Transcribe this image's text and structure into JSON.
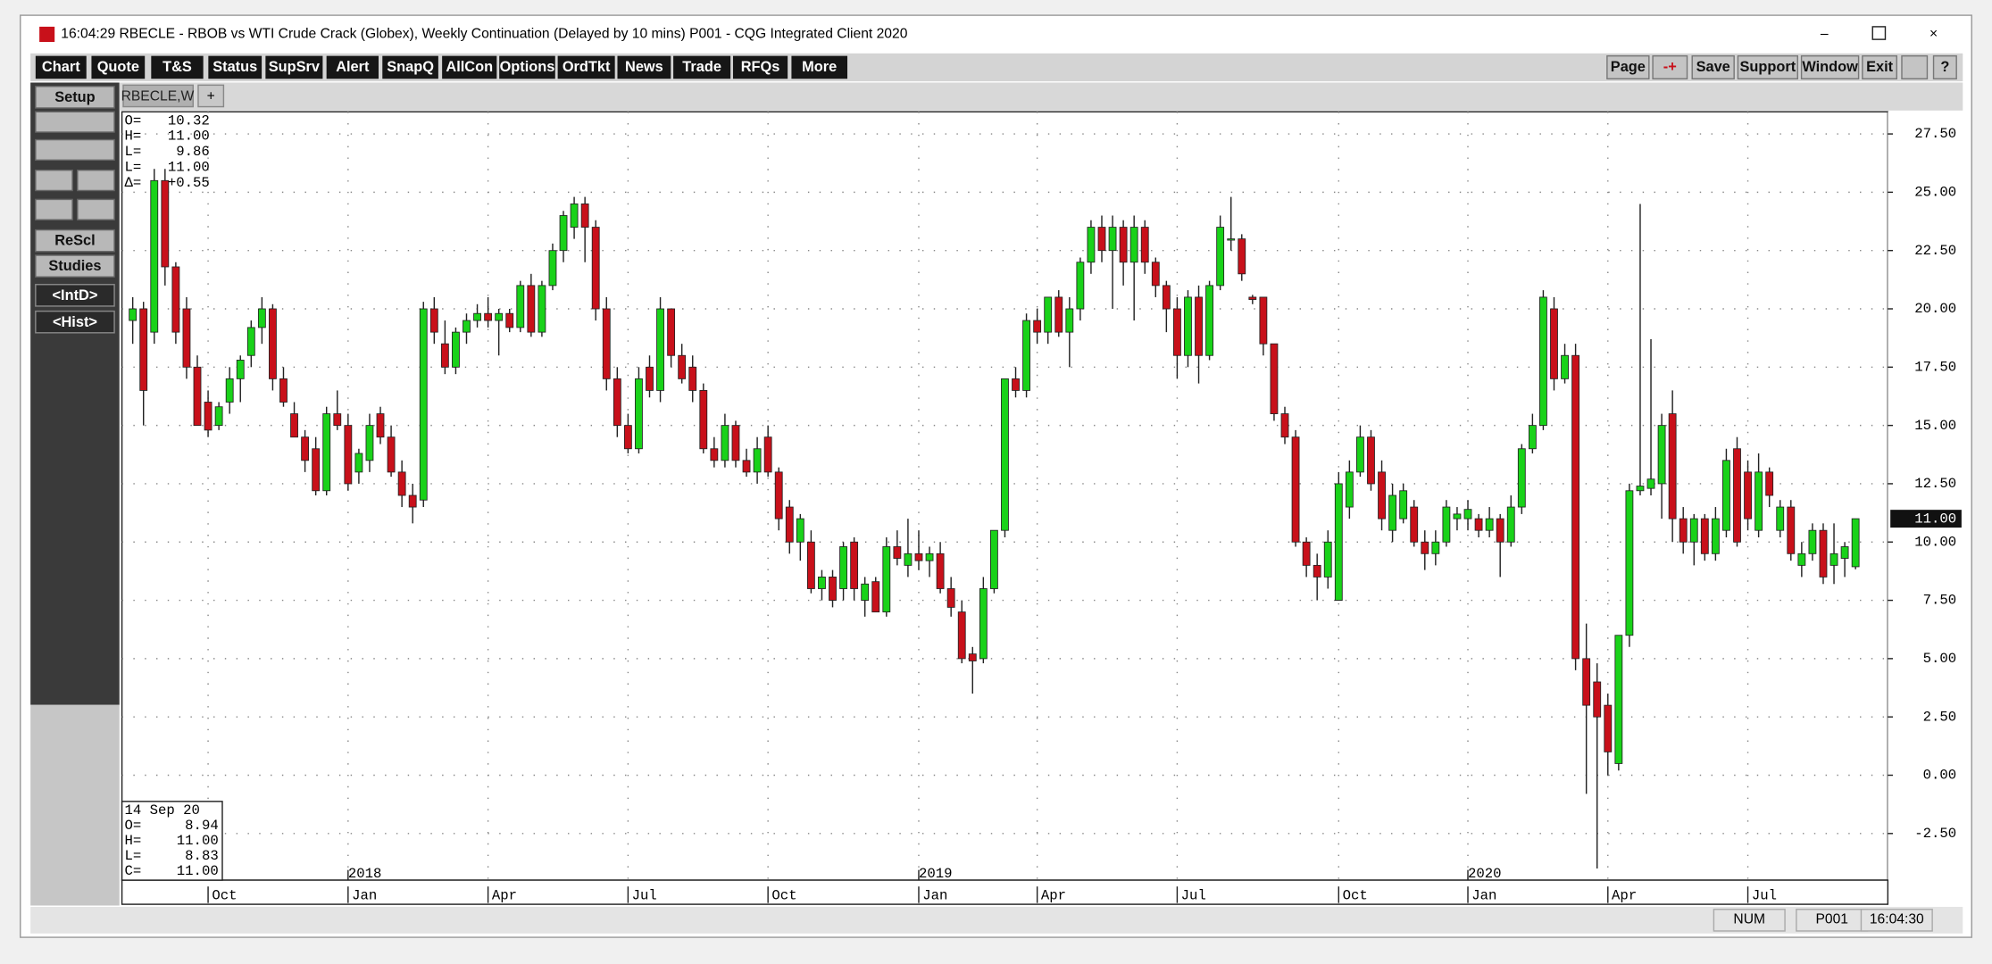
{
  "window": {
    "title": "16:04:29  RBECLE - RBOB vs WTI Crude Crack (Globex), Weekly Continuation (Delayed by 10 mins)   P001 - CQG Integrated Client 2020",
    "menu": [
      "Chart",
      "Quote",
      "T&S",
      "Status",
      "SupSrv",
      "Alert",
      "SnapQ",
      "AllCon",
      "Options",
      "OrdTkt",
      "News",
      "Trade",
      "RFQs",
      "More"
    ],
    "right_menu": [
      "Page",
      "-+",
      "Save",
      "Support",
      "Window",
      "Exit",
      "?"
    ],
    "side_buttons": [
      "Setup",
      "ReScl",
      "Studies",
      "<IntD>",
      "<Hist>"
    ],
    "tab": "RBECLE,W",
    "status": [
      "NUM",
      "P001",
      "16:04:30"
    ]
  },
  "chart_data": {
    "type": "candlestick",
    "up_color": "#19d219",
    "down_color": "#c8101a",
    "grid": true,
    "ylim": [
      -4.5,
      28.45
    ],
    "yticks": [
      {
        "value": 27.5,
        "label": "27.50"
      },
      {
        "value": 25,
        "label": "25.00"
      },
      {
        "value": 22.5,
        "label": "22.50"
      },
      {
        "value": 20,
        "label": "20.00"
      },
      {
        "value": 17.5,
        "label": "17.50"
      },
      {
        "value": 15,
        "label": "15.00"
      },
      {
        "value": 12.5,
        "label": "12.50"
      },
      {
        "value": 10,
        "label": "10.00"
      },
      {
        "value": 7.5,
        "label": "7.50"
      },
      {
        "value": 5,
        "label": "5.00"
      },
      {
        "value": 2.5,
        "label": "2.50"
      },
      {
        "value": 0,
        "label": "0.00"
      },
      {
        "value": -2.5,
        "label": "-2.50"
      }
    ],
    "xlim": [
      -1,
      163
    ],
    "xticks": [
      {
        "value": 7,
        "label": "Oct"
      },
      {
        "value": 20,
        "label": "Jan"
      },
      {
        "value": 33,
        "label": "Apr"
      },
      {
        "value": 46,
        "label": "Jul"
      },
      {
        "value": 59,
        "label": "Oct"
      },
      {
        "value": 73,
        "label": "Jan"
      },
      {
        "value": 84,
        "label": "Apr"
      },
      {
        "value": 97,
        "label": "Jul"
      },
      {
        "value": 112,
        "label": "Oct"
      },
      {
        "value": 124,
        "label": "Jan"
      },
      {
        "value": 137,
        "label": "Apr"
      },
      {
        "value": 150,
        "label": "Jul"
      }
    ],
    "year_ticks": [
      {
        "value": 20,
        "label": "2018"
      },
      {
        "value": 73,
        "label": "2019"
      },
      {
        "value": 124,
        "label": "2020"
      }
    ],
    "last_price": {
      "value": 11,
      "label": "11.00"
    },
    "info_top": [
      [
        "O=",
        "10.32"
      ],
      [
        "H=",
        "11.00"
      ],
      [
        "L=",
        "9.86"
      ],
      [
        "L=",
        "11.00"
      ],
      [
        "Δ=",
        "+0.55"
      ]
    ],
    "info_bottom": {
      "date": "14 Sep 20",
      "rows": [
        [
          "O=",
          "8.94"
        ],
        [
          "H=",
          "11.00"
        ],
        [
          "L=",
          "8.83"
        ],
        [
          "C=",
          "11.00"
        ]
      ]
    },
    "candles": [
      [
        19.5,
        20.5,
        18.5,
        20
      ],
      [
        20,
        20.3,
        15,
        16.5
      ],
      [
        19,
        26,
        18.5,
        25.5
      ],
      [
        25.5,
        26,
        21,
        21.8
      ],
      [
        21.8,
        22,
        18.5,
        19
      ],
      [
        20,
        20.5,
        17,
        17.5
      ],
      [
        17.5,
        18,
        15,
        15
      ],
      [
        16,
        16.5,
        14.5,
        14.8
      ],
      [
        15,
        16,
        14.8,
        15.8
      ],
      [
        16,
        17.5,
        15.5,
        17
      ],
      [
        17,
        18,
        16,
        17.8
      ],
      [
        18,
        19.5,
        17.5,
        19.2
      ],
      [
        19.2,
        20.5,
        18.5,
        20
      ],
      [
        20,
        20.2,
        16.5,
        17
      ],
      [
        17,
        17.5,
        15.8,
        16
      ],
      [
        15.5,
        16,
        14.5,
        14.5
      ],
      [
        14.5,
        14.8,
        13,
        13.5
      ],
      [
        14,
        14.5,
        12,
        12.2
      ],
      [
        12.2,
        15.8,
        12,
        15.5
      ],
      [
        15.5,
        16.5,
        14.8,
        15
      ],
      [
        15,
        15.5,
        12.2,
        12.5
      ],
      [
        13,
        14,
        12.5,
        13.8
      ],
      [
        13.5,
        15.5,
        13,
        15
      ],
      [
        15.5,
        15.8,
        14.2,
        14.5
      ],
      [
        14.5,
        15,
        12.8,
        13
      ],
      [
        13,
        13.5,
        11.5,
        12
      ],
      [
        12,
        12.5,
        10.8,
        11.5
      ],
      [
        11.8,
        20.3,
        11.5,
        20
      ],
      [
        20,
        20.5,
        18.5,
        19
      ],
      [
        18.5,
        19.5,
        17.2,
        17.5
      ],
      [
        17.5,
        19.2,
        17.2,
        19
      ],
      [
        19,
        19.8,
        18.5,
        19.5
      ],
      [
        19.5,
        20.2,
        19.2,
        19.8
      ],
      [
        19.8,
        20.5,
        19.2,
        19.5
      ],
      [
        19.5,
        20,
        18,
        19.8
      ],
      [
        19.8,
        20,
        19,
        19.2
      ],
      [
        19.2,
        21.2,
        19,
        21
      ],
      [
        21,
        21.5,
        18.8,
        19
      ],
      [
        19,
        21.2,
        18.8,
        21
      ],
      [
        21,
        22.8,
        20.8,
        22.5
      ],
      [
        22.5,
        24.2,
        22,
        24
      ],
      [
        23.5,
        24.8,
        23,
        24.5
      ],
      [
        24.5,
        24.8,
        22,
        23.5
      ],
      [
        23.5,
        23.8,
        19.5,
        20
      ],
      [
        20,
        20.5,
        16.5,
        17
      ],
      [
        17,
        17.5,
        14.5,
        15
      ],
      [
        15,
        15.5,
        13.8,
        14
      ],
      [
        14,
        17.5,
        13.8,
        17
      ],
      [
        17.5,
        18,
        16.2,
        16.5
      ],
      [
        16.5,
        20.5,
        16,
        20
      ],
      [
        20,
        20,
        17.5,
        18
      ],
      [
        18,
        18.5,
        16.8,
        17
      ],
      [
        17.5,
        18,
        16,
        16.5
      ],
      [
        16.5,
        16.8,
        13.8,
        14
      ],
      [
        14,
        14.5,
        13.2,
        13.5
      ],
      [
        13.5,
        15.5,
        13.2,
        15
      ],
      [
        15,
        15.2,
        13.2,
        13.5
      ],
      [
        13.5,
        14,
        12.8,
        13
      ],
      [
        13,
        14.5,
        12.5,
        14
      ],
      [
        14.5,
        15,
        12.8,
        13
      ],
      [
        13,
        13.2,
        10.5,
        11
      ],
      [
        11.5,
        11.8,
        9.5,
        10
      ],
      [
        10,
        11.2,
        9.2,
        11
      ],
      [
        10,
        10.5,
        7.8,
        8
      ],
      [
        8,
        8.8,
        7.5,
        8.5
      ],
      [
        8.5,
        8.8,
        7.2,
        7.5
      ],
      [
        8,
        10,
        7.5,
        9.8
      ],
      [
        10,
        10.2,
        7.5,
        8
      ],
      [
        7.5,
        8.5,
        6.8,
        8.2
      ],
      [
        8.3,
        8.5,
        7,
        7
      ],
      [
        7,
        10.2,
        6.8,
        9.8
      ],
      [
        9.8,
        10.5,
        9,
        9.3
      ],
      [
        9,
        11,
        8.5,
        9.5
      ],
      [
        9.5,
        10.5,
        8.8,
        9.2
      ],
      [
        9.2,
        9.8,
        8.5,
        9.5
      ],
      [
        9.5,
        10,
        7.8,
        8
      ],
      [
        8,
        8.5,
        6.8,
        7.2
      ],
      [
        7,
        7.5,
        4.8,
        5
      ],
      [
        5.2,
        5.5,
        3.5,
        4.9
      ],
      [
        5,
        8.5,
        4.8,
        8
      ],
      [
        8,
        10.5,
        7.8,
        10.5
      ],
      [
        10.5,
        17,
        10.2,
        17
      ],
      [
        17,
        17.5,
        16.2,
        16.5
      ],
      [
        16.5,
        19.8,
        16.2,
        19.5
      ],
      [
        19.5,
        20,
        18.5,
        19
      ],
      [
        19,
        20.5,
        18.5,
        20.5
      ],
      [
        20.5,
        20.8,
        18.8,
        19
      ],
      [
        19,
        20.5,
        17.5,
        20
      ],
      [
        20,
        22.2,
        19.5,
        22
      ],
      [
        22,
        23.8,
        21.5,
        23.5
      ],
      [
        23.5,
        24,
        22,
        22.5
      ],
      [
        22.5,
        24,
        20,
        23.5
      ],
      [
        23.5,
        23.8,
        21,
        22
      ],
      [
        22,
        24,
        19.5,
        23.5
      ],
      [
        23.5,
        23.8,
        21.5,
        22
      ],
      [
        22,
        22.2,
        20.5,
        21
      ],
      [
        21,
        21.2,
        19,
        20
      ],
      [
        20,
        20.5,
        17,
        18
      ],
      [
        18,
        20.8,
        17.5,
        20.5
      ],
      [
        20.5,
        21,
        16.8,
        18
      ],
      [
        18,
        21.2,
        17.8,
        21
      ],
      [
        21,
        24,
        20.8,
        23.5
      ],
      [
        23,
        24.8,
        22.5,
        23
      ],
      [
        23,
        23.2,
        21.2,
        21.5
      ],
      [
        20.5,
        20.6,
        20.2,
        20.4
      ],
      [
        20.5,
        20.5,
        18,
        18.5
      ],
      [
        18.5,
        18.5,
        15.2,
        15.5
      ],
      [
        15.5,
        15.8,
        14.2,
        14.5
      ],
      [
        14.5,
        14.8,
        9.8,
        10
      ],
      [
        10,
        10.2,
        8.5,
        9
      ],
      [
        9,
        9.5,
        7.5,
        8.5
      ],
      [
        8.5,
        10.5,
        8,
        10
      ],
      [
        7.5,
        13,
        7.5,
        12.5
      ],
      [
        11.5,
        13.5,
        11,
        13
      ],
      [
        13,
        15,
        12.8,
        14.5
      ],
      [
        14.5,
        14.8,
        12.2,
        12.5
      ],
      [
        13,
        13.5,
        10.5,
        11
      ],
      [
        10.5,
        12.5,
        10,
        12
      ],
      [
        11,
        12.5,
        10.8,
        12.2
      ],
      [
        11.5,
        11.8,
        9.8,
        10
      ],
      [
        10,
        10.5,
        8.8,
        9.5
      ],
      [
        9.5,
        10.5,
        9,
        10
      ],
      [
        10,
        11.8,
        9.8,
        11.5
      ],
      [
        11,
        11.5,
        10.5,
        11.2
      ],
      [
        11,
        11.8,
        10.5,
        11.4
      ],
      [
        11,
        11.2,
        10.2,
        10.5
      ],
      [
        10.5,
        11.5,
        10.2,
        11
      ],
      [
        11,
        11.2,
        8.5,
        10
      ],
      [
        10,
        12,
        9.8,
        11.5
      ],
      [
        11.5,
        14.2,
        11.2,
        14
      ],
      [
        14,
        15.5,
        13.8,
        15
      ],
      [
        15,
        20.8,
        14.8,
        20.5
      ],
      [
        20,
        20.5,
        16.5,
        17
      ],
      [
        17,
        18.5,
        16.8,
        18
      ],
      [
        18,
        18.5,
        4.5,
        5
      ],
      [
        5,
        6.5,
        -0.8,
        3
      ],
      [
        4,
        4.8,
        -4,
        2.5
      ],
      [
        3,
        3.5,
        0,
        1
      ],
      [
        0.5,
        6,
        0.2,
        6
      ],
      [
        6,
        12.5,
        5.5,
        12.2
      ],
      [
        12.2,
        24.5,
        12,
        12.4
      ],
      [
        12.3,
        18.7,
        12,
        12.7
      ],
      [
        12.5,
        15.5,
        11,
        15
      ],
      [
        15.5,
        16.5,
        10,
        11
      ],
      [
        11,
        11.5,
        9.5,
        10
      ],
      [
        10,
        11.2,
        9,
        11
      ],
      [
        11,
        11.2,
        9.2,
        9.5
      ],
      [
        9.5,
        11.5,
        9.2,
        11
      ],
      [
        10.5,
        14,
        10.2,
        13.5
      ],
      [
        14,
        14.5,
        9.8,
        10
      ],
      [
        13,
        13.5,
        10.5,
        11
      ],
      [
        10.5,
        13.8,
        10.2,
        13
      ],
      [
        13,
        13.2,
        11.5,
        12
      ],
      [
        10.5,
        11.8,
        10.2,
        11.5
      ],
      [
        11.5,
        11.8,
        9.2,
        9.5
      ],
      [
        9,
        10,
        8.5,
        9.5
      ],
      [
        9.5,
        10.8,
        9.2,
        10.5
      ],
      [
        10.5,
        10.8,
        8.2,
        8.5
      ],
      [
        9,
        10.8,
        8.2,
        9.5
      ],
      [
        9.3,
        10,
        8.5,
        9.8
      ],
      [
        8.94,
        11,
        8.83,
        11
      ]
    ]
  }
}
